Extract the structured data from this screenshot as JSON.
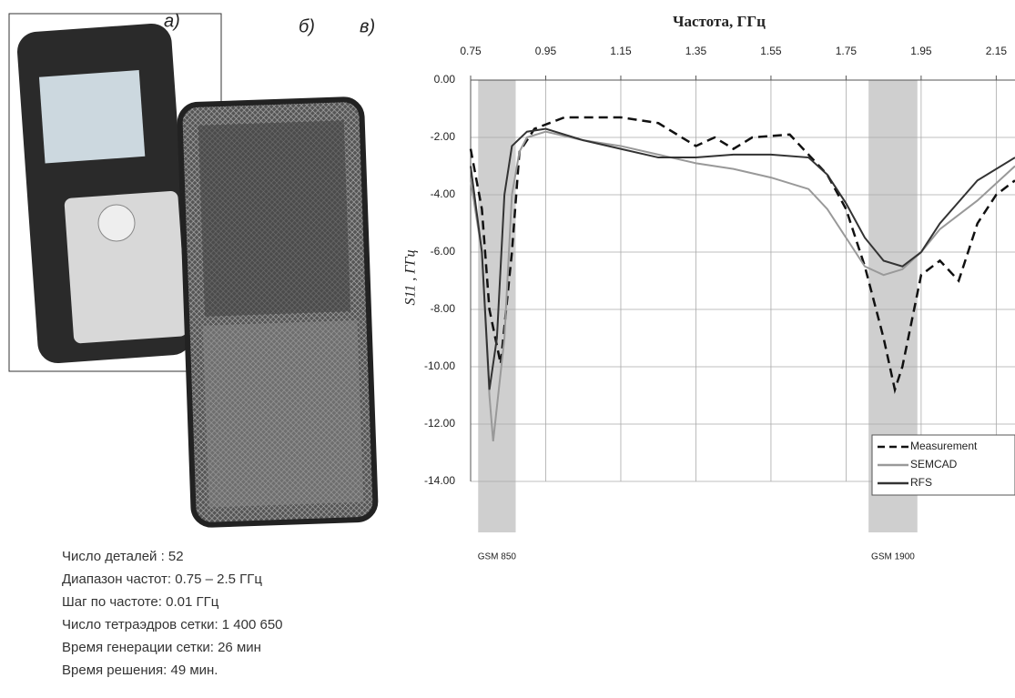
{
  "chart_data": {
    "type": "line",
    "title": "Частота, ГГц",
    "ylabel": "S11 , ГГц",
    "xlim": [
      0.75,
      2.2
    ],
    "xticks": [
      0.75,
      0.95,
      1.15,
      1.35,
      1.55,
      1.75,
      1.95,
      2.15
    ],
    "ylim": [
      -14,
      0
    ],
    "yticks": [
      {
        "value": 0,
        "label": "0.00"
      },
      {
        "value": -2,
        "label": "-2.00"
      },
      {
        "value": -4,
        "label": "-4.00"
      },
      {
        "value": -6,
        "label": "-6.00"
      },
      {
        "value": -8,
        "label": "-8.00"
      },
      {
        "value": -10,
        "label": "-10.00"
      },
      {
        "value": -12,
        "label": "-12.00"
      },
      {
        "value": -14,
        "label": "-14.00"
      }
    ],
    "grid": true,
    "legend": "lower right",
    "bands": [
      {
        "label": "GSM 850",
        "range": [
          0.77,
          0.87
        ]
      },
      {
        "label": "GSM 1900",
        "range": [
          1.81,
          1.94
        ]
      }
    ],
    "series": [
      {
        "name": "Measurement",
        "color": "#111111",
        "dash": true,
        "x": [
          0.75,
          0.78,
          0.8,
          0.83,
          0.86,
          0.88,
          0.92,
          1.0,
          1.15,
          1.25,
          1.35,
          1.4,
          1.45,
          1.5,
          1.6,
          1.7,
          1.75,
          1.8,
          1.85,
          1.88,
          1.9,
          1.95,
          2.0,
          2.05,
          2.1,
          2.15,
          2.2
        ],
        "values": [
          -2.4,
          -4.5,
          -8,
          -9.9,
          -6,
          -2.5,
          -1.7,
          -1.3,
          -1.3,
          -1.5,
          -2.3,
          -2.0,
          -2.4,
          -2.0,
          -1.9,
          -3.3,
          -4.5,
          -6.5,
          -9,
          -10.8,
          -10,
          -6.8,
          -6.3,
          -7,
          -5,
          -4,
          -3.5
        ]
      },
      {
        "name": "SEMCAD",
        "color": "#999999",
        "x": [
          0.75,
          0.78,
          0.8,
          0.81,
          0.84,
          0.86,
          0.88,
          0.9,
          0.95,
          1.05,
          1.15,
          1.25,
          1.35,
          1.45,
          1.55,
          1.65,
          1.7,
          1.75,
          1.8,
          1.85,
          1.9,
          1.95,
          2.0,
          2.1,
          2.2
        ],
        "values": [
          -3.5,
          -6,
          -11,
          -12.6,
          -9,
          -4,
          -2.5,
          -2,
          -1.8,
          -2.1,
          -2.3,
          -2.6,
          -2.9,
          -3.1,
          -3.4,
          -3.8,
          -4.5,
          -5.5,
          -6.5,
          -6.8,
          -6.6,
          -6,
          -5.2,
          -4.2,
          -3
        ]
      },
      {
        "name": "RFS",
        "color": "#333333",
        "x": [
          0.75,
          0.78,
          0.8,
          0.82,
          0.84,
          0.86,
          0.9,
          0.95,
          1.05,
          1.15,
          1.25,
          1.35,
          1.45,
          1.55,
          1.65,
          1.7,
          1.75,
          1.8,
          1.85,
          1.9,
          1.95,
          2.0,
          2.1,
          2.2
        ],
        "values": [
          -3,
          -6,
          -10.8,
          -9,
          -4,
          -2.3,
          -1.8,
          -1.7,
          -2.1,
          -2.4,
          -2.7,
          -2.7,
          -2.6,
          -2.6,
          -2.7,
          -3.3,
          -4.3,
          -5.5,
          -6.3,
          -6.5,
          -6,
          -5,
          -3.5,
          -2.7
        ]
      }
    ]
  },
  "panel_labels": [
    "а)",
    "б)",
    "в)"
  ],
  "notes": [
    "Число деталей : 52",
    "Диапазон частот: 0.75 – 2.5 ГГц",
    "Шаг по частоте: 0.01 ГГц",
    "Число тетраэдров сетки: 1 400 650",
    "Время генерации сетки: 26 мин",
    "Время решения: 49 мин."
  ]
}
